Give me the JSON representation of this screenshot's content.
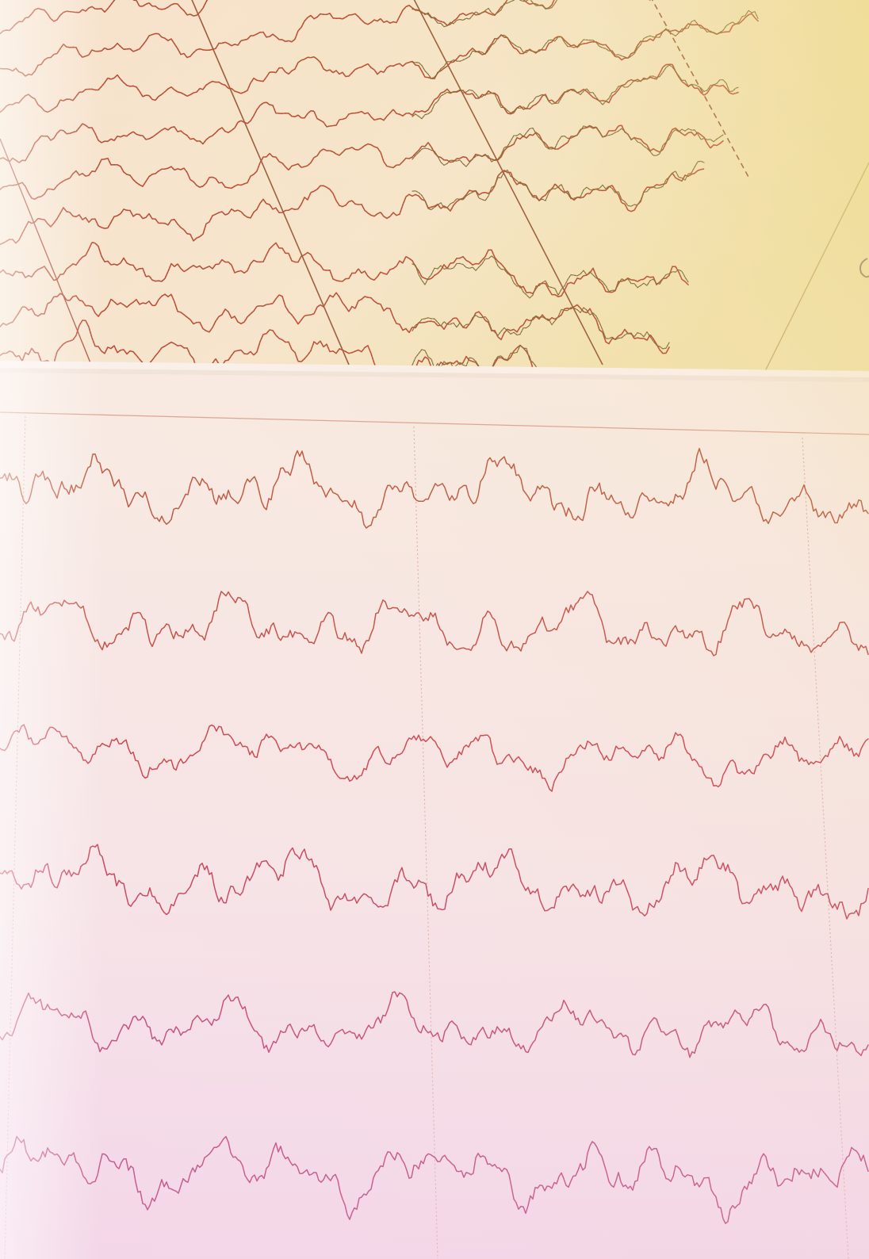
{
  "photo": {
    "subject": "eeg-paper-printout",
    "colors": {
      "back_sheet_paper": "#f6e7cf",
      "front_sheet_paper": "#f7e9e4",
      "tint_warm_top_right": "#f0dd9a",
      "tint_magenta_bottom": "#f3d6ea",
      "back_trace_red": "#b23a22",
      "back_trace_olive": "#6f5a22",
      "front_trace_top": "#b5482c",
      "front_trace_mid": "#c5303a",
      "front_trace_bottom": "#b52e6a",
      "grid_line": "#d9a99a"
    },
    "front_channel_count": 6,
    "back_channel_count": 9
  }
}
